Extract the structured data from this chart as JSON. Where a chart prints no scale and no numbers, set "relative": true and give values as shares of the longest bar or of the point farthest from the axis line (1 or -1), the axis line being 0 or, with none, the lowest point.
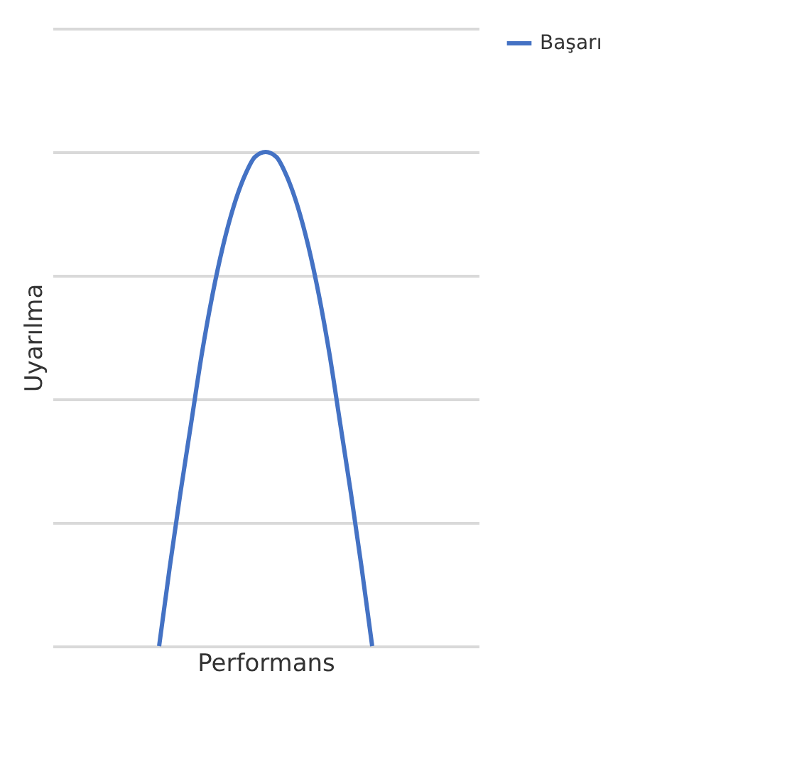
{
  "chart_data": {
    "type": "line",
    "xlabel": "Performans",
    "ylabel": "Uyarılma",
    "relative": true,
    "grid": "y",
    "legend": "right",
    "categories": [
      null,
      null,
      null,
      null,
      null,
      null,
      null,
      null,
      null,
      null,
      null,
      null,
      null,
      null,
      null,
      null,
      null,
      null,
      null,
      null,
      null,
      null,
      null,
      null,
      null,
      null,
      null,
      null,
      null,
      null,
      null,
      null,
      null,
      null,
      null,
      null,
      null,
      null,
      null,
      null,
      null
    ],
    "series": [
      {
        "name": "Başarı",
        "color": "#4472c4",
        "values": [
          null,
          null,
          null,
          null,
          null,
          null,
          null,
          null,
          null,
          null,
          0,
          0.16,
          0.31,
          0.45,
          0.59,
          0.71,
          0.81,
          0.89,
          0.95,
          0.99,
          1,
          0.99,
          0.95,
          0.89,
          0.81,
          0.71,
          0.59,
          0.45,
          0.31,
          0.16,
          0,
          null,
          null,
          null,
          null,
          null,
          null,
          null,
          null,
          null,
          null
        ]
      }
    ]
  }
}
